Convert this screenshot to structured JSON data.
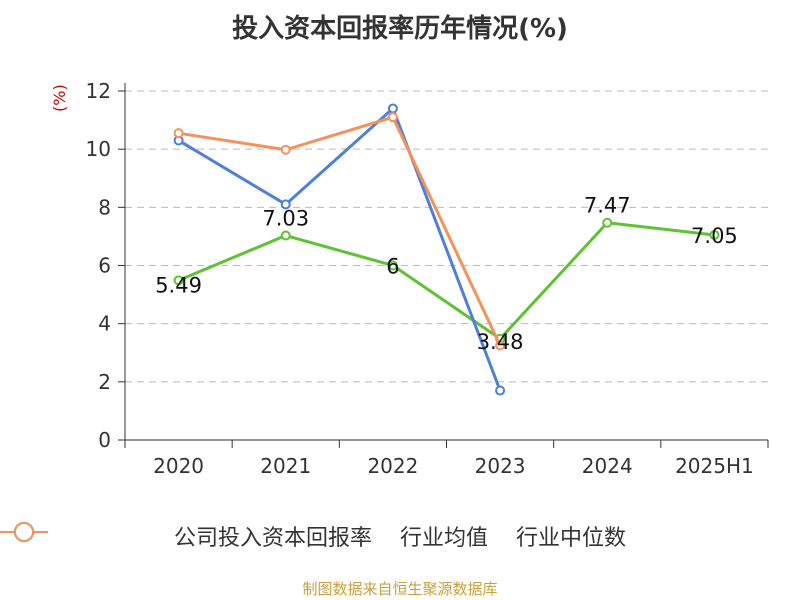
{
  "chart_data": {
    "type": "line",
    "title": "投入资本回报率历年情况(%)",
    "ylabel": "(%)",
    "categories": [
      "2020",
      "2021",
      "2022",
      "2023",
      "2024",
      "2025H1"
    ],
    "ylim": [
      0,
      12
    ],
    "yticks": [
      0,
      2,
      4,
      6,
      8,
      10,
      12
    ],
    "grid": true,
    "legend_position": "bottom",
    "series": [
      {
        "name": "公司投入资本回报率",
        "color": "#5ec232",
        "values": [
          5.49,
          7.03,
          6,
          3.48,
          7.47,
          7.05
        ],
        "labels": [
          "5.49",
          "7.03",
          "6",
          "3.48",
          "7.47",
          "7.05"
        ]
      },
      {
        "name": "行业均值",
        "color": "#4e7fd9",
        "values": [
          10.3,
          8.1,
          11.4,
          1.7,
          null,
          null
        ]
      },
      {
        "name": "行业中位数",
        "color": "#f5915a",
        "values": [
          10.55,
          9.98,
          11.1,
          3.25,
          null,
          null
        ]
      }
    ]
  },
  "source": "制图数据来自恒生聚源数据库"
}
